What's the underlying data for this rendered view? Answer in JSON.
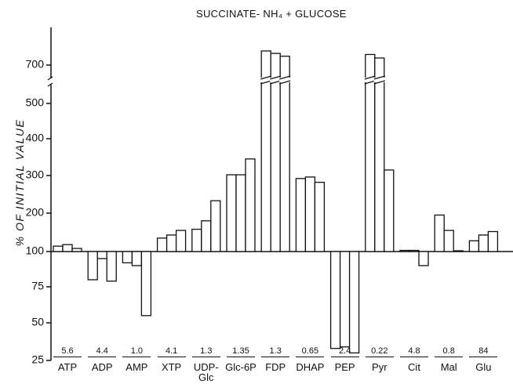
{
  "chart_data": {
    "type": "bar",
    "title": "SUCCINATE- NH₄ + GLUCOSE",
    "y_label": "% OF INITIAL VALUE",
    "categories": [
      "ATP",
      "ADP",
      "AMP",
      "XTP",
      "UDP-Glc",
      "Glc-6P",
      "FDP",
      "DHAP",
      "PEP",
      "Pyr",
      "Cit",
      "Mal",
      "Glu"
    ],
    "initial_values": [
      "5.6",
      "4.4",
      "1.0",
      "4.1",
      "1.3",
      "1.35",
      "1.3",
      "0.65",
      "2.4",
      "0.22",
      "4.8",
      "0.8",
      "84"
    ],
    "series": [
      {
        "values": [
          114,
          80,
          92,
          135,
          158,
          302,
          740,
          292,
          33,
          730,
          103,
          195,
          128
        ]
      },
      {
        "values": [
          118,
          95,
          90,
          143,
          180,
          302,
          733,
          296,
          34,
          720,
          103,
          155,
          143
        ]
      },
      {
        "values": [
          108,
          79,
          55,
          155,
          233,
          345,
          725,
          282,
          30,
          315,
          90,
          102,
          152
        ]
      }
    ],
    "baseline": 100,
    "ylim": [
      25,
      740
    ],
    "yticks": [
      25,
      50,
      75,
      100,
      200,
      300,
      400,
      500,
      700
    ]
  }
}
